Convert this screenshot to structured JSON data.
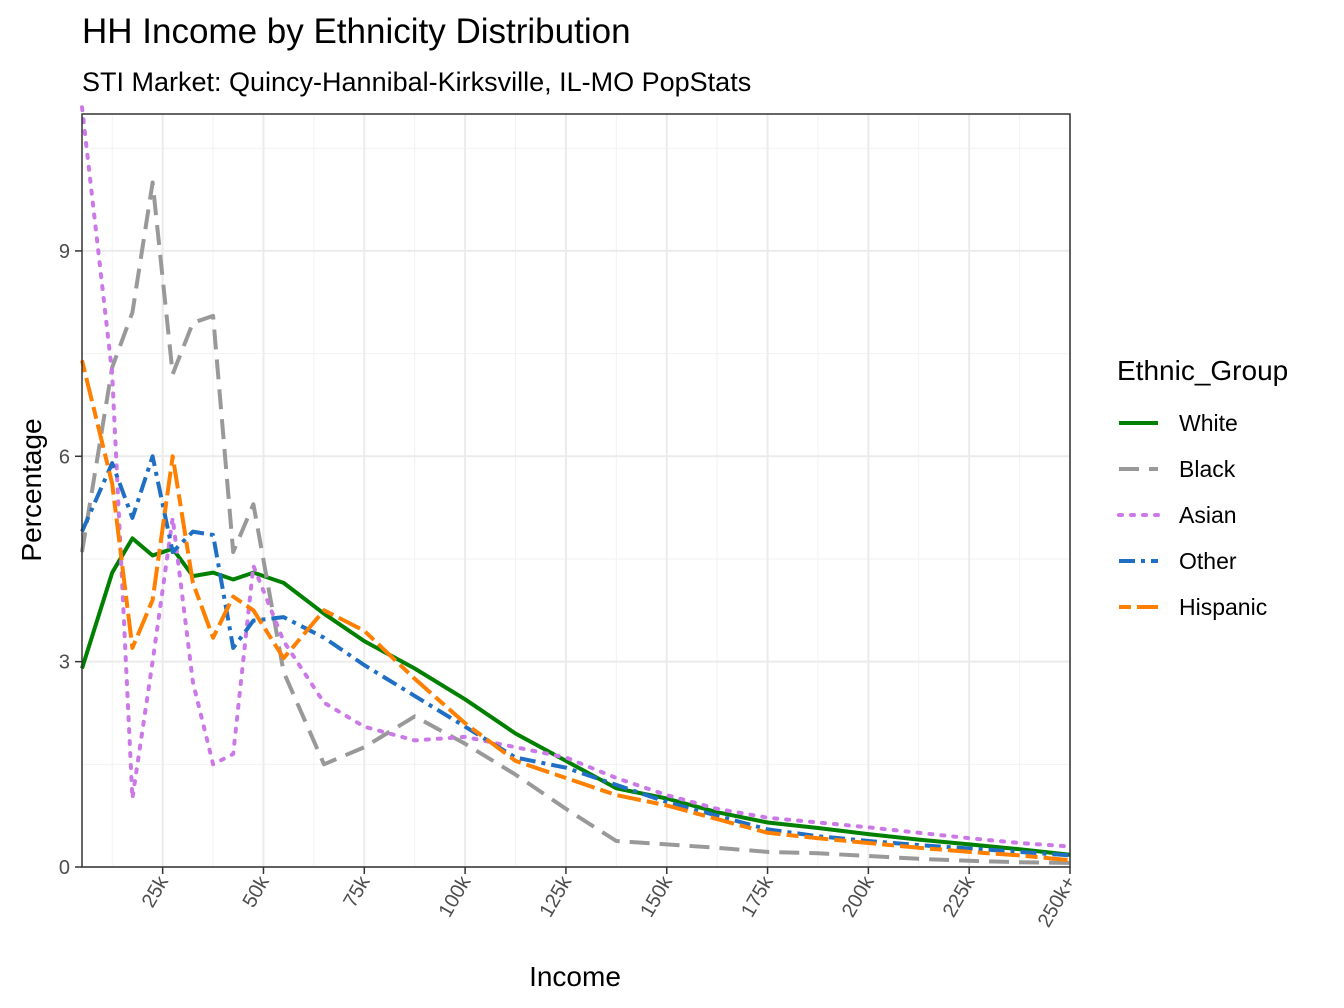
{
  "chart_data": {
    "type": "line",
    "title": "HH Income by Ethnicity Distribution",
    "subtitle": "STI Market: Quincy-Hannibal-Kirksville, IL-MO PopStats",
    "xlabel": "Income",
    "ylabel": "Percentage",
    "xlim": [
      5,
      250
    ],
    "ylim": [
      0,
      11
    ],
    "x_ticks": [
      25,
      50,
      75,
      100,
      125,
      150,
      175,
      200,
      225,
      250
    ],
    "x_tick_labels": [
      "25k",
      "50k",
      "75k",
      "100k",
      "125k",
      "150k",
      "175k",
      "200k",
      "225k",
      "250k+"
    ],
    "y_ticks": [
      0,
      3,
      6,
      9
    ],
    "y_tick_labels": [
      "0",
      "3",
      "6",
      "9"
    ],
    "grid": true,
    "legend": {
      "title": "Ethnic_Group",
      "position": "right"
    },
    "series": [
      {
        "name": "White",
        "color": "#008000",
        "dash": "solid",
        "x": [
          5,
          12.5,
          17.5,
          22.5,
          27.5,
          32.5,
          37.5,
          42.5,
          47.5,
          55,
          65,
          75,
          87.5,
          100,
          112.5,
          125,
          137.5,
          150,
          162.5,
          175,
          187.5,
          200,
          212.5,
          225,
          237.5,
          250
        ],
        "y": [
          2.9,
          4.3,
          4.8,
          4.55,
          4.65,
          4.25,
          4.3,
          4.2,
          4.3,
          4.15,
          3.7,
          3.3,
          2.9,
          2.45,
          1.95,
          1.55,
          1.15,
          1.0,
          0.8,
          0.65,
          0.57,
          0.48,
          0.4,
          0.33,
          0.26,
          0.18
        ]
      },
      {
        "name": "Black",
        "color": "#999999",
        "dash": "longdash",
        "x": [
          5,
          12.5,
          17.5,
          22.5,
          27.5,
          32.5,
          37.5,
          42.5,
          47.5,
          55,
          65,
          75,
          87.5,
          100,
          112.5,
          125,
          137.5,
          150,
          162.5,
          175,
          187.5,
          200,
          212.5,
          225,
          237.5,
          250
        ],
        "y": [
          4.6,
          7.3,
          8.1,
          10.0,
          7.2,
          7.95,
          8.05,
          4.6,
          5.3,
          2.85,
          1.5,
          1.75,
          2.2,
          1.8,
          1.35,
          0.85,
          0.38,
          0.33,
          0.28,
          0.22,
          0.2,
          0.16,
          0.12,
          0.09,
          0.07,
          0.06
        ]
      },
      {
        "name": "Asian",
        "color": "#cc79e8",
        "dash": "dotted",
        "x": [
          5,
          12.5,
          17.5,
          22.5,
          27.5,
          32.5,
          37.5,
          42.5,
          47.5,
          55,
          65,
          75,
          87.5,
          100,
          112.5,
          125,
          137.5,
          150,
          162.5,
          175,
          187.5,
          200,
          212.5,
          225,
          237.5,
          250
        ],
        "y": [
          11.1,
          7.2,
          1.0,
          3.0,
          5.1,
          2.7,
          1.5,
          1.65,
          4.4,
          3.3,
          2.4,
          2.05,
          1.85,
          1.9,
          1.75,
          1.6,
          1.3,
          1.05,
          0.85,
          0.72,
          0.65,
          0.58,
          0.5,
          0.42,
          0.35,
          0.3
        ]
      },
      {
        "name": "Other",
        "color": "#1f6fc5",
        "dash": "dashdot",
        "x": [
          5,
          12.5,
          17.5,
          22.5,
          27.5,
          32.5,
          37.5,
          42.5,
          47.5,
          55,
          65,
          75,
          87.5,
          100,
          112.5,
          125,
          137.5,
          150,
          162.5,
          175,
          187.5,
          200,
          212.5,
          225,
          237.5,
          250
        ],
        "y": [
          4.9,
          5.9,
          5.1,
          6.0,
          4.6,
          4.9,
          4.85,
          3.2,
          3.6,
          3.65,
          3.35,
          2.95,
          2.5,
          2.05,
          1.6,
          1.45,
          1.2,
          0.95,
          0.75,
          0.55,
          0.45,
          0.38,
          0.32,
          0.27,
          0.22,
          0.17
        ]
      },
      {
        "name": "Hispanic",
        "color": "#ff7f00",
        "dash": "twodash",
        "x": [
          5,
          12.5,
          17.5,
          22.5,
          27.5,
          32.5,
          37.5,
          42.5,
          47.5,
          55,
          65,
          75,
          87.5,
          100,
          112.5,
          125,
          137.5,
          150,
          162.5,
          175,
          187.5,
          200,
          212.5,
          225,
          237.5,
          250
        ],
        "y": [
          7.4,
          5.6,
          3.2,
          3.9,
          6.0,
          4.15,
          3.35,
          3.95,
          3.75,
          3.05,
          3.75,
          3.45,
          2.75,
          2.1,
          1.55,
          1.3,
          1.05,
          0.9,
          0.7,
          0.5,
          0.42,
          0.35,
          0.28,
          0.22,
          0.17,
          0.1
        ]
      }
    ]
  }
}
